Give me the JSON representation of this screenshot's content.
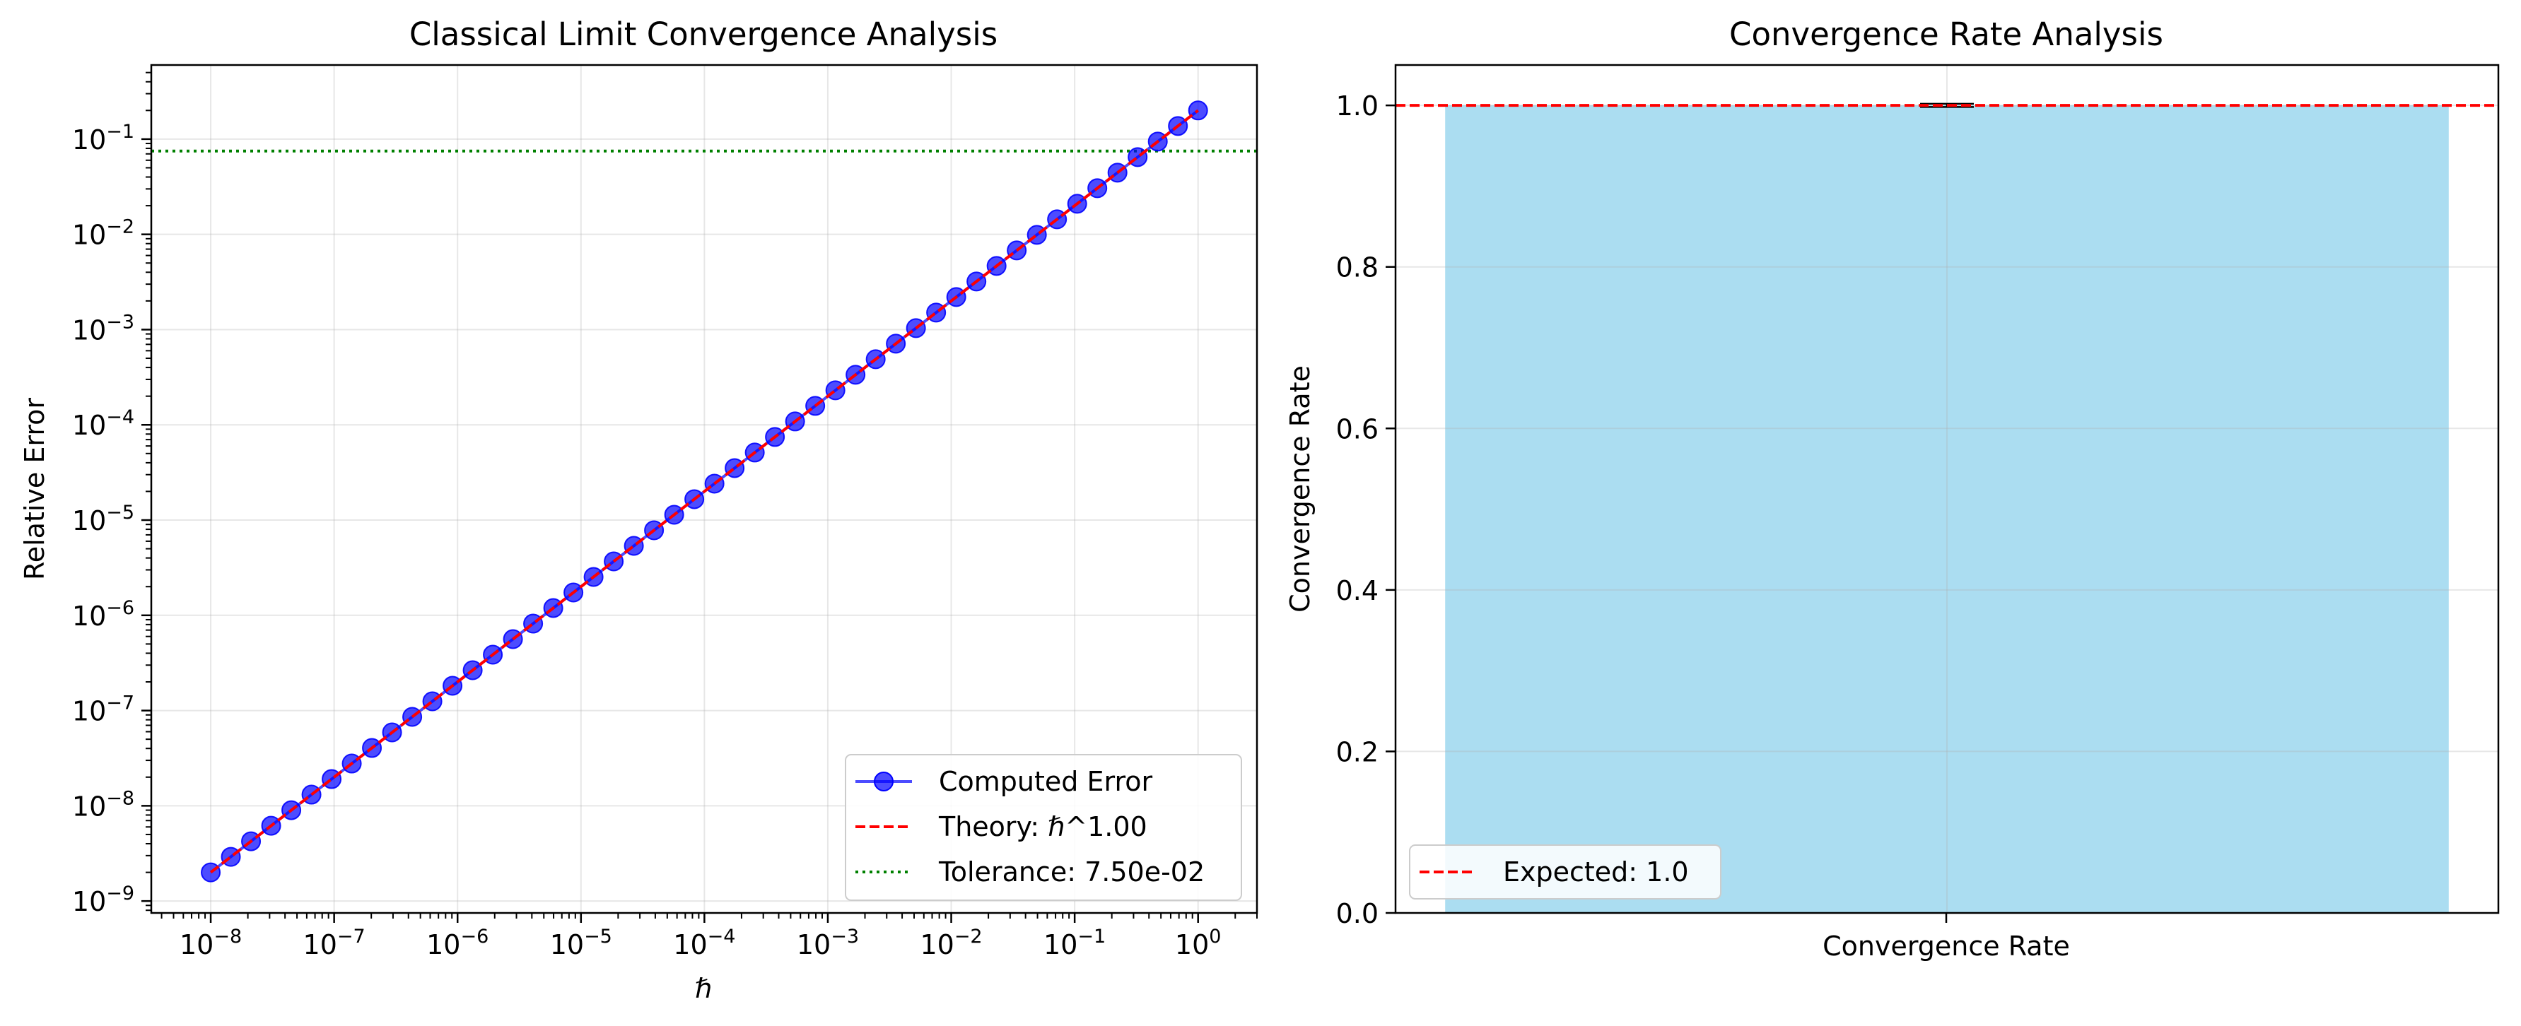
{
  "chart_data": [
    {
      "type": "line",
      "title": "Classical Limit Convergence Analysis",
      "xlabel": "ℏ",
      "ylabel": "Relative Error",
      "xscale": "log",
      "yscale": "log",
      "xlim": [
        3.3e-09,
        3.0
      ],
      "ylim": [
        7.5e-10,
        0.6
      ],
      "x_ticks": [
        {
          "base": "10",
          "exp": "−8"
        },
        {
          "base": "10",
          "exp": "−7"
        },
        {
          "base": "10",
          "exp": "−6"
        },
        {
          "base": "10",
          "exp": "−5"
        },
        {
          "base": "10",
          "exp": "−4"
        },
        {
          "base": "10",
          "exp": "−3"
        },
        {
          "base": "10",
          "exp": "−2"
        },
        {
          "base": "10",
          "exp": "−1"
        },
        {
          "base": "10",
          "exp": "0"
        }
      ],
      "y_ticks": [
        {
          "base": "10",
          "exp": "−9"
        },
        {
          "base": "10",
          "exp": "−8"
        },
        {
          "base": "10",
          "exp": "−7"
        },
        {
          "base": "10",
          "exp": "−6"
        },
        {
          "base": "10",
          "exp": "−5"
        },
        {
          "base": "10",
          "exp": "−4"
        },
        {
          "base": "10",
          "exp": "−3"
        },
        {
          "base": "10",
          "exp": "−2"
        },
        {
          "base": "10",
          "exp": "−1"
        }
      ],
      "grid": true,
      "legend_position": "lower-right",
      "series": [
        {
          "name": "Computed Error",
          "color": "#0000ff",
          "marker": "circle",
          "x_range_log10": [
            -8,
            0
          ],
          "points": 50,
          "formula": "error = 0.2 × ℏ"
        },
        {
          "name": "Theory: ℏ^1.00",
          "color": "#ff0000",
          "style": "dashed",
          "x_range_log10": [
            -8,
            0
          ],
          "formula": "0.2 × ℏ^1.00"
        }
      ],
      "hlines": [
        {
          "name": "Tolerance: 7.50e-02",
          "value": 0.075,
          "color": "#008000",
          "style": "dotted"
        }
      ]
    },
    {
      "type": "bar",
      "title": "Convergence Rate Analysis",
      "xlabel": "",
      "ylabel": "Convergence Rate",
      "categories": [
        "Convergence Rate"
      ],
      "values": [
        1.0
      ],
      "errors": [
        0.002
      ],
      "bar_color": "#87ceeb",
      "ylim": [
        0,
        1.05
      ],
      "y_ticks": [
        "0.0",
        "0.2",
        "0.4",
        "0.6",
        "0.8",
        "1.0"
      ],
      "grid": true,
      "legend_position": "lower-left",
      "hlines": [
        {
          "name": "Expected: 1.0",
          "value": 1.0,
          "color": "#ff0000",
          "style": "dashed"
        }
      ]
    }
  ]
}
